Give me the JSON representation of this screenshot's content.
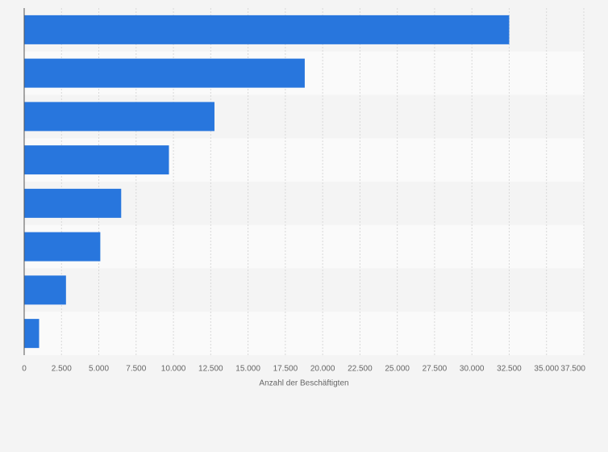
{
  "chart_data": {
    "type": "hbar",
    "x_label": "Anzahl der Beschäftigten",
    "categories": [
      null,
      null,
      null,
      null,
      null,
      null,
      null,
      null
    ],
    "values": [
      32500,
      18800,
      12750,
      9700,
      6500,
      5100,
      2800,
      1000
    ],
    "color": "#2876dd",
    "xlim": [
      0,
      37500
    ],
    "xticks": [
      0,
      {
        "value": 2500,
        "label": "2.500"
      },
      {
        "value": 5000,
        "label": "5.000"
      },
      {
        "value": 7500,
        "label": "7.500"
      },
      {
        "value": 10000,
        "label": "10.000"
      },
      {
        "value": 12500,
        "label": "12.500"
      },
      {
        "value": 15000,
        "label": "15.000"
      },
      {
        "value": 17500,
        "label": "17.500"
      },
      {
        "value": 20000,
        "label": "20.000"
      },
      {
        "value": 22500,
        "label": "22.500"
      },
      {
        "value": 25000,
        "label": "25.000"
      },
      {
        "value": 27500,
        "label": "27.500"
      },
      {
        "value": 30000,
        "label": "30.000"
      },
      {
        "value": 32500,
        "label": "32.500"
      },
      {
        "value": 35000,
        "label": "35.000"
      },
      {
        "value": 37500,
        "label": "37.500"
      }
    ],
    "grid": true
  }
}
